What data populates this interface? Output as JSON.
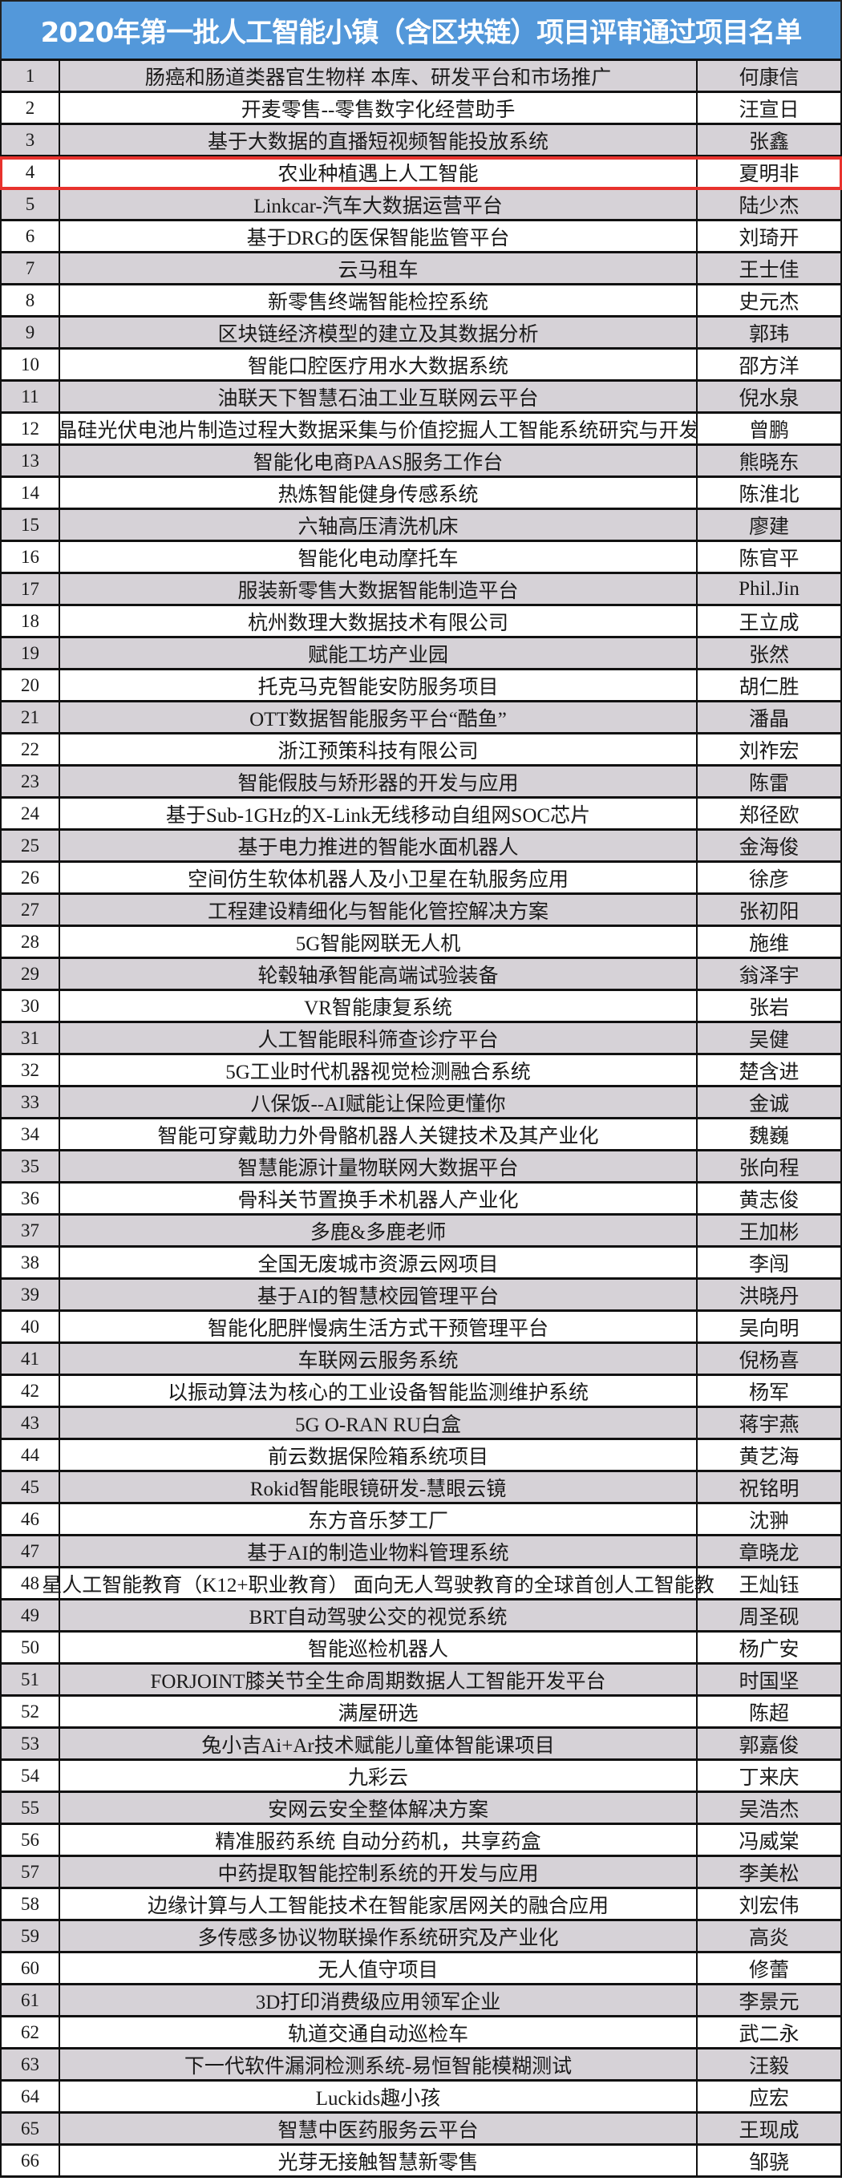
{
  "title": "2020年第一批人工智能小镇（含区块链）项目评审通过项目名单",
  "highlight_color": "#e8322d",
  "header_color": "#5398da",
  "highlighted_row": 4,
  "rows": [
    {
      "no": "1",
      "project": "肠癌和肠道类器官生物样  本库、研发平台和市场推广",
      "name": "何康信"
    },
    {
      "no": "2",
      "project": "开麦零售--零售数字化经营助手",
      "name": "汪宣日"
    },
    {
      "no": "3",
      "project": "基于大数据的直播短视频智能投放系统",
      "name": "张鑫"
    },
    {
      "no": "4",
      "project": "农业种植遇上人工智能",
      "name": "夏明非"
    },
    {
      "no": "5",
      "project": "Linkcar-汽车大数据运营平台",
      "name": "陆少杰"
    },
    {
      "no": "6",
      "project": "基于DRG的医保智能监管平台",
      "name": "刘琦开"
    },
    {
      "no": "7",
      "project": "云马租车",
      "name": "王士佳"
    },
    {
      "no": "8",
      "project": "新零售终端智能检控系统",
      "name": "史元杰"
    },
    {
      "no": "9",
      "project": "区块链经济模型的建立及其数据分析",
      "name": "郭玮"
    },
    {
      "no": "10",
      "project": "智能口腔医疗用水大数据系统",
      "name": "邵方洋"
    },
    {
      "no": "11",
      "project": "油联天下智慧石油工业互联网云平台",
      "name": "倪水泉"
    },
    {
      "no": "12",
      "project": "晶硅光伏电池片制造过程大数据采集与价值挖掘人工智能系统研究与开发",
      "name": "曾鹏"
    },
    {
      "no": "13",
      "project": "智能化电商PAAS服务工作台",
      "name": "熊晓东"
    },
    {
      "no": "14",
      "project": "热炼智能健身传感系统",
      "name": "陈淮北"
    },
    {
      "no": "15",
      "project": "六轴高压清洗机床",
      "name": "廖建"
    },
    {
      "no": "16",
      "project": "智能化电动摩托车",
      "name": "陈官平"
    },
    {
      "no": "17",
      "project": "服装新零售大数据智能制造平台",
      "name": "Phil.Jin"
    },
    {
      "no": "18",
      "project": "杭州数理大数据技术有限公司",
      "name": "王立成"
    },
    {
      "no": "19",
      "project": "赋能工坊产业园",
      "name": "张然"
    },
    {
      "no": "20",
      "project": "托克马克智能安防服务项目",
      "name": "胡仁胜"
    },
    {
      "no": "21",
      "project": "OTT数据智能服务平台“酷鱼”",
      "name": "潘晶"
    },
    {
      "no": "22",
      "project": "浙江预策科技有限公司",
      "name": "刘祚宏"
    },
    {
      "no": "23",
      "project": "智能假肢与矫形器的开发与应用",
      "name": "陈雷"
    },
    {
      "no": "24",
      "project": "基于Sub-1GHz的X-Link无线移动自组网SOC芯片",
      "name": "郑径欧"
    },
    {
      "no": "25",
      "project": "基于电力推进的智能水面机器人",
      "name": "金海俊"
    },
    {
      "no": "26",
      "project": "空间仿生软体机器人及小卫星在轨服务应用",
      "name": "徐彦"
    },
    {
      "no": "27",
      "project": "工程建设精细化与智能化管控解决方案",
      "name": "张初阳"
    },
    {
      "no": "28",
      "project": "5G智能网联无人机",
      "name": "施维"
    },
    {
      "no": "29",
      "project": "轮毂轴承智能高端试验装备",
      "name": "翁泽宇"
    },
    {
      "no": "30",
      "project": "VR智能康复系统",
      "name": "张岩"
    },
    {
      "no": "31",
      "project": "人工智能眼科筛查诊疗平台",
      "name": "吴健"
    },
    {
      "no": "32",
      "project": "5G工业时代机器视觉检测融合系统",
      "name": "楚含进"
    },
    {
      "no": "33",
      "project": "八保饭--AI赋能让保险更懂你",
      "name": "金诚"
    },
    {
      "no": "34",
      "project": "智能可穿戴助力外骨骼机器人关键技术及其产业化",
      "name": "魏巍"
    },
    {
      "no": "35",
      "project": "智慧能源计量物联网大数据平台",
      "name": "张向程"
    },
    {
      "no": "36",
      "project": "骨科关节置换手术机器人产业化",
      "name": "黄志俊"
    },
    {
      "no": "37",
      "project": "多鹿&多鹿老师",
      "name": "王加彬"
    },
    {
      "no": "38",
      "project": "全国无废城市资源云网项目",
      "name": "李闯"
    },
    {
      "no": "39",
      "project": "基于AI的智慧校园管理平台",
      "name": "洪晓丹"
    },
    {
      "no": "40",
      "project": "智能化肥胖慢病生活方式干预管理平台",
      "name": "吴向明"
    },
    {
      "no": "41",
      "project": "车联网云服务系统",
      "name": "倪杨喜"
    },
    {
      "no": "42",
      "project": "以振动算法为核心的工业设备智能监测维护系统",
      "name": "杨军"
    },
    {
      "no": "43",
      "project": "5G O-RAN RU白盒",
      "name": "蒋宇燕"
    },
    {
      "no": "44",
      "project": "前云数据保险箱系统项目",
      "name": "黄艺海"
    },
    {
      "no": "45",
      "project": "Rokid智能眼镜研发-慧眼云镜",
      "name": "祝铭明"
    },
    {
      "no": "46",
      "project": "东方音乐梦工厂",
      "name": "沈翀"
    },
    {
      "no": "47",
      "project": "基于AI的制造业物料管理系统",
      "name": "章晓龙"
    },
    {
      "no": "48",
      "project": "星人工智能教育（K12+职业教育）  面向无人驾驶教育的全球首创人工智能教",
      "name": "王灿钰"
    },
    {
      "no": "49",
      "project": "BRT自动驾驶公交的视觉系统",
      "name": "周圣砚"
    },
    {
      "no": "50",
      "project": "智能巡检机器人",
      "name": "杨广安"
    },
    {
      "no": "51",
      "project": "FORJOINT膝关节全生命周期数据人工智能开发平台",
      "name": "时国坚"
    },
    {
      "no": "52",
      "project": "满屋研选",
      "name": "陈超"
    },
    {
      "no": "53",
      "project": "兔小吉Ai+Ar技术赋能儿童体智能课项目",
      "name": "郭嘉俊"
    },
    {
      "no": "54",
      "project": "九彩云",
      "name": "丁来庆"
    },
    {
      "no": "55",
      "project": "安网云安全整体解决方案",
      "name": "吴浩杰"
    },
    {
      "no": "56",
      "project": "精准服药系统 自动分药机，共享药盒",
      "name": "冯威棠"
    },
    {
      "no": "57",
      "project": "中药提取智能控制系统的开发与应用",
      "name": "李美松"
    },
    {
      "no": "58",
      "project": "边缘计算与人工智能技术在智能家居网关的融合应用",
      "name": "刘宏伟"
    },
    {
      "no": "59",
      "project": "多传感多协议物联操作系统研究及产业化",
      "name": "高炎"
    },
    {
      "no": "60",
      "project": "无人值守项目",
      "name": "修蕾"
    },
    {
      "no": "61",
      "project": "3D打印消费级应用领军企业",
      "name": "李景元"
    },
    {
      "no": "62",
      "project": "轨道交通自动巡检车",
      "name": "武二永"
    },
    {
      "no": "63",
      "project": "下一代软件漏洞检测系统-易恒智能模糊测试",
      "name": "汪毅"
    },
    {
      "no": "64",
      "project": "Luckids趣小孩",
      "name": "应宏"
    },
    {
      "no": "65",
      "project": "智慧中医药服务云平台",
      "name": "王现成"
    },
    {
      "no": "66",
      "project": "光芽无接触智慧新零售",
      "name": "邹骁"
    }
  ]
}
